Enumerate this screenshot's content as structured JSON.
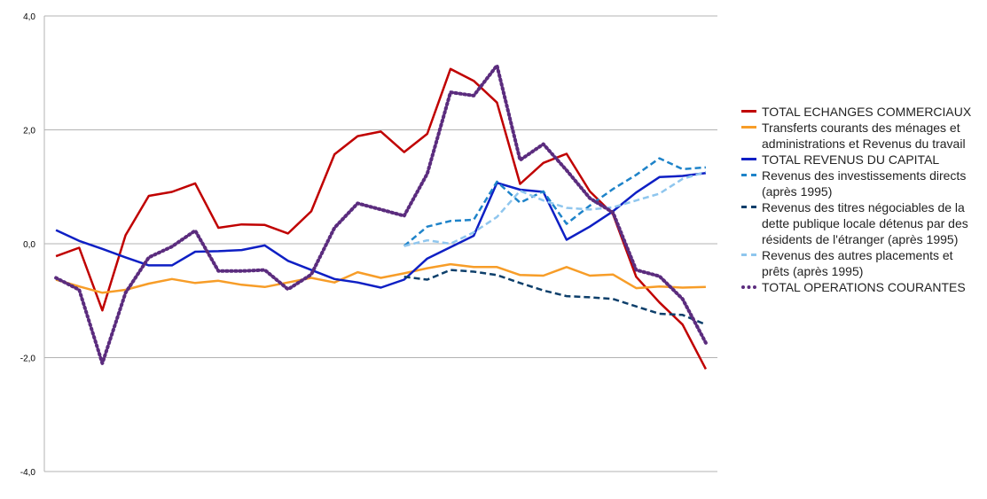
{
  "chart_data": {
    "type": "line",
    "ylim": [
      -4,
      4
    ],
    "yticks": [
      "4,0",
      "2,0",
      "0,0",
      "-2,0",
      "-4,0"
    ],
    "grid": true,
    "legend_position": "right",
    "series": [
      {
        "name": "TOTAL ECHANGES COMMERCIAUX",
        "color": "#c00000",
        "style": "solid",
        "start": 0,
        "values": [
          -0.22,
          -0.07,
          -1.17,
          0.15,
          0.84,
          0.91,
          1.06,
          0.28,
          0.34,
          0.33,
          0.18,
          0.57,
          1.57,
          1.89,
          1.97,
          1.61,
          1.93,
          3.07,
          2.86,
          2.48,
          1.05,
          1.42,
          1.58,
          0.92,
          0.52,
          -0.58,
          -1.03,
          -1.42,
          -2.2
        ]
      },
      {
        "name": "Transferts courants des ménages et administrations et Revenus du travail",
        "color": "#f79d28",
        "style": "solid",
        "start": 0,
        "values": [
          -0.63,
          -0.75,
          -0.86,
          -0.81,
          -0.7,
          -0.62,
          -0.69,
          -0.65,
          -0.72,
          -0.76,
          -0.68,
          -0.6,
          -0.68,
          -0.5,
          -0.6,
          -0.52,
          -0.43,
          -0.36,
          -0.41,
          -0.41,
          -0.55,
          -0.56,
          -0.41,
          -0.56,
          -0.54,
          -0.78,
          -0.75,
          -0.77,
          -0.76
        ]
      },
      {
        "name": "TOTAL REVENUS DU CAPITAL",
        "color": "#0e1fc4",
        "style": "solid",
        "start": 0,
        "values": [
          0.24,
          0.05,
          -0.09,
          -0.24,
          -0.38,
          -0.38,
          -0.14,
          -0.13,
          -0.11,
          -0.03,
          -0.3,
          -0.46,
          -0.62,
          -0.68,
          -0.77,
          -0.63,
          -0.26,
          -0.06,
          0.14,
          1.07,
          0.95,
          0.91,
          0.07,
          0.3,
          0.57,
          0.9,
          1.17,
          1.19,
          1.24
        ]
      },
      {
        "name": "Revenus des investissements directs (après 1995)",
        "color": "#1e83c9",
        "style": "dashed",
        "start": 15,
        "values": [
          -0.04,
          0.3,
          0.4,
          0.42,
          1.09,
          0.72,
          0.92,
          0.35,
          0.67,
          0.96,
          1.21,
          1.5,
          1.31,
          1.34
        ]
      },
      {
        "name": "Revenus des titres négociables de la dette publique locale détenus par des résidents de l'étranger (après 1995)",
        "color": "#0d3f6b",
        "style": "dashed",
        "start": 15,
        "values": [
          -0.58,
          -0.63,
          -0.46,
          -0.49,
          -0.55,
          -0.69,
          -0.82,
          -0.92,
          -0.94,
          -0.97,
          -1.1,
          -1.23,
          -1.25,
          -1.42
        ]
      },
      {
        "name": "Revenus des autres placements et prêts (après 1995)",
        "color": "#8fc6ee",
        "style": "dashed",
        "start": 15,
        "values": [
          -0.04,
          0.06,
          0.0,
          0.2,
          0.47,
          0.93,
          0.76,
          0.63,
          0.6,
          0.64,
          0.76,
          0.88,
          1.14,
          1.26
        ]
      },
      {
        "name": "TOTAL OPERATIONS COURANTES",
        "color": "#5b2c7e",
        "style": "dotted",
        "start": 0,
        "values": [
          -0.6,
          -0.81,
          -2.1,
          -0.86,
          -0.24,
          -0.05,
          0.23,
          -0.48,
          -0.48,
          -0.46,
          -0.8,
          -0.54,
          0.28,
          0.71,
          0.6,
          0.49,
          1.23,
          2.66,
          2.6,
          3.13,
          1.47,
          1.75,
          1.29,
          0.8,
          0.55,
          -0.46,
          -0.57,
          -0.97,
          -1.74
        ]
      }
    ]
  }
}
